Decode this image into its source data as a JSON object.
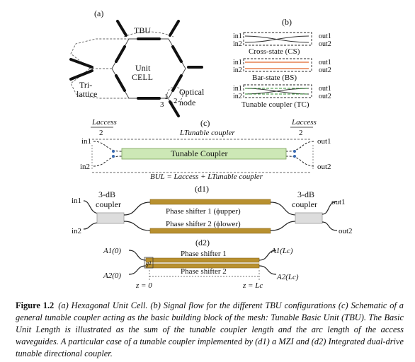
{
  "panel_a": {
    "label": "(a)",
    "tbu": "TBU",
    "unit": "Unit",
    "cell": "CELL",
    "tri": "Tri-",
    "lattice": "lattice",
    "optical": "Optical",
    "node": "node",
    "port1": "1",
    "port2": "2",
    "port3": "3"
  },
  "panel_b": {
    "label": "(b)",
    "in1": "in1",
    "in2": "in2",
    "out1": "out1",
    "out2": "out2",
    "cs": "Cross-state (CS)",
    "bs": "Bar-state (BS)",
    "tc": "Tunable coupler (TC)",
    "colors": {
      "cs": "#333333",
      "bs": "#e0642a",
      "tc": "#2f8f2f"
    }
  },
  "panel_c": {
    "label": "(c)",
    "laccess_left": "Laccess",
    "laccess_right": "Laccess",
    "two_left": "2",
    "two_right": "2",
    "ltunable": "LTunable coupler",
    "in1": "in1",
    "in2": "in2",
    "out1": "out1",
    "out2": "out2",
    "box": "Tunable Coupler",
    "bul": "BUL = Laccess + LTunable coupler",
    "box_color": "#cde8b6"
  },
  "panel_d1": {
    "label": "(d1)",
    "coupler_left_top": "3-dB",
    "coupler_left_bottom": "coupler",
    "coupler_right_top": "3-dB",
    "coupler_right_bottom": "coupler",
    "in1": "in1",
    "in2": "in2",
    "out1": "out1",
    "out2": "out2",
    "ps1": "Phase shifter 1 (ϕupper)",
    "ps2": "Phase shifter 2 (ϕlower)",
    "shifter_color": "#b8902f",
    "coupler_color": "#dddddd"
  },
  "panel_d2": {
    "label": "(d2)",
    "a1_0": "A1(0)",
    "a2_0": "A2(0)",
    "a1_lc": "A1(Lc)",
    "a2_lc": "A2(Lc)",
    "ps1": "Phase shifter 1",
    "ps2": "Phase shifter 2",
    "g1": "g1",
    "z0": "z = 0",
    "zlc": "z = Lc"
  },
  "caption": {
    "figure_label": "Figure 1.2",
    "text": "(a) Hexagonal Unit Cell. (b) Signal flow for the different TBU configurations (c) Schematic of a general tunable coupler acting as the basic building block of the mesh: Tunable Basic Unit (TBU). The Basic Unit Length is illustrated as the sum of the tunable coupler length and the arc length of the access waveguides. A particular case of a tunable coupler implemented by (d1) a MZI and (d2) Integrated dual-drive tunable directional coupler."
  }
}
